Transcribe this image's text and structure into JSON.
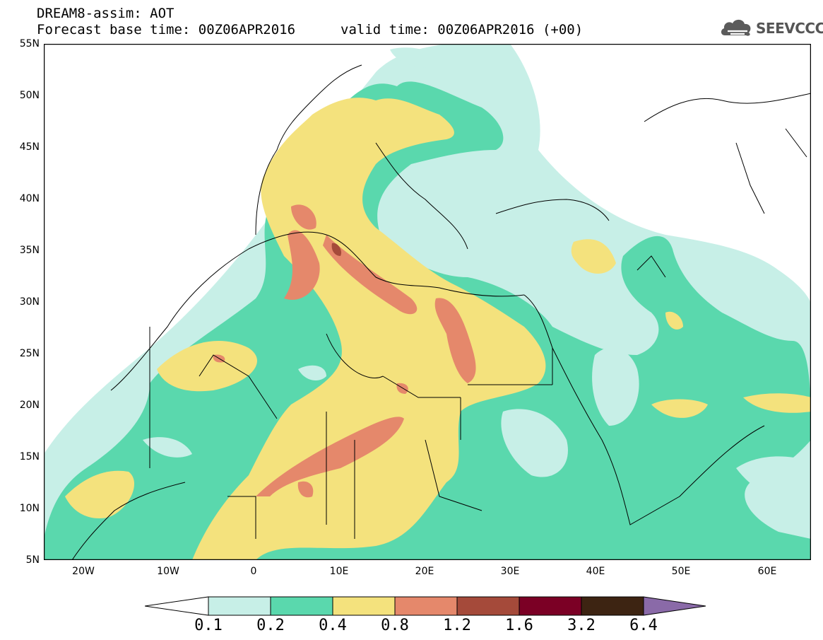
{
  "header": {
    "title": "DREAM8-assim: AOT",
    "base_time": "Forecast base time: 00Z06APR2016",
    "valid_time": "valid time: 00Z06APR2016 (+00)"
  },
  "logo": {
    "text": "SEEVCCC",
    "icon": "cloud-logo-icon"
  },
  "map": {
    "lat_labels": [
      "55N",
      "50N",
      "45N",
      "40N",
      "35N",
      "30N",
      "25N",
      "20N",
      "15N",
      "10N",
      "5N"
    ],
    "lon_labels": [
      "20W",
      "10W",
      "0",
      "10E",
      "20E",
      "30E",
      "40E",
      "50E",
      "60E"
    ],
    "lon_range": [
      -25,
      65
    ],
    "lat_range": [
      5,
      55
    ],
    "grid": false
  },
  "colorbar": {
    "labels": [
      "0.1",
      "0.2",
      "0.4",
      "0.8",
      "1.2",
      "1.6",
      "3.2",
      "6.4"
    ],
    "colors": [
      "#ffffff",
      "#c7efe7",
      "#5ad8ad",
      "#f4e27d",
      "#e5886b",
      "#a54a3a",
      "#7b0025",
      "#3d2412",
      "#8a6aa8"
    ]
  }
}
